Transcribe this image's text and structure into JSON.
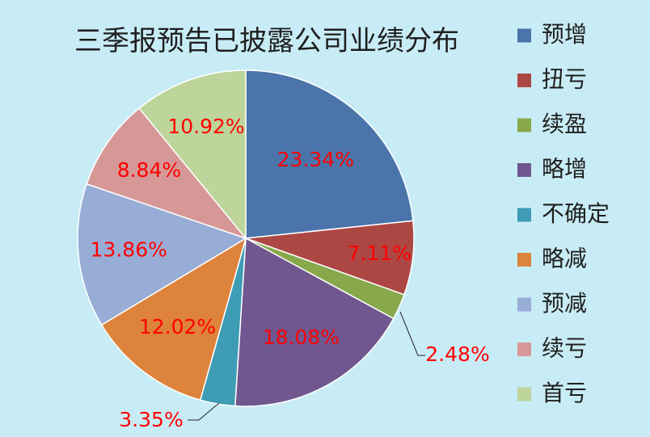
{
  "chart_data": {
    "type": "pie",
    "title": "三季报预告已披露公司业绩分布",
    "legend_position": "right",
    "slices": [
      {
        "name": "预增",
        "value": 23.34,
        "label": "23.34%",
        "color": "#4a74aa"
      },
      {
        "name": "扭亏",
        "value": 7.11,
        "label": "7.11%",
        "color": "#ad4744"
      },
      {
        "name": "续盈",
        "value": 2.48,
        "label": "2.48%",
        "color": "#87a84b"
      },
      {
        "name": "略增",
        "value": 18.08,
        "label": "18.08%",
        "color": "#70578f"
      },
      {
        "name": "不确定",
        "value": 3.35,
        "label": "3.35%",
        "color": "#3f9cb5"
      },
      {
        "name": "略减",
        "value": 12.02,
        "label": "12.02%",
        "color": "#de833b"
      },
      {
        "name": "预减",
        "value": 13.86,
        "label": "13.86%",
        "color": "#98add6"
      },
      {
        "name": "续亏",
        "value": 8.84,
        "label": "8.84%",
        "color": "#d69897"
      },
      {
        "name": "首亏",
        "value": 10.92,
        "label": "10.92%",
        "color": "#bdd49a"
      }
    ]
  }
}
